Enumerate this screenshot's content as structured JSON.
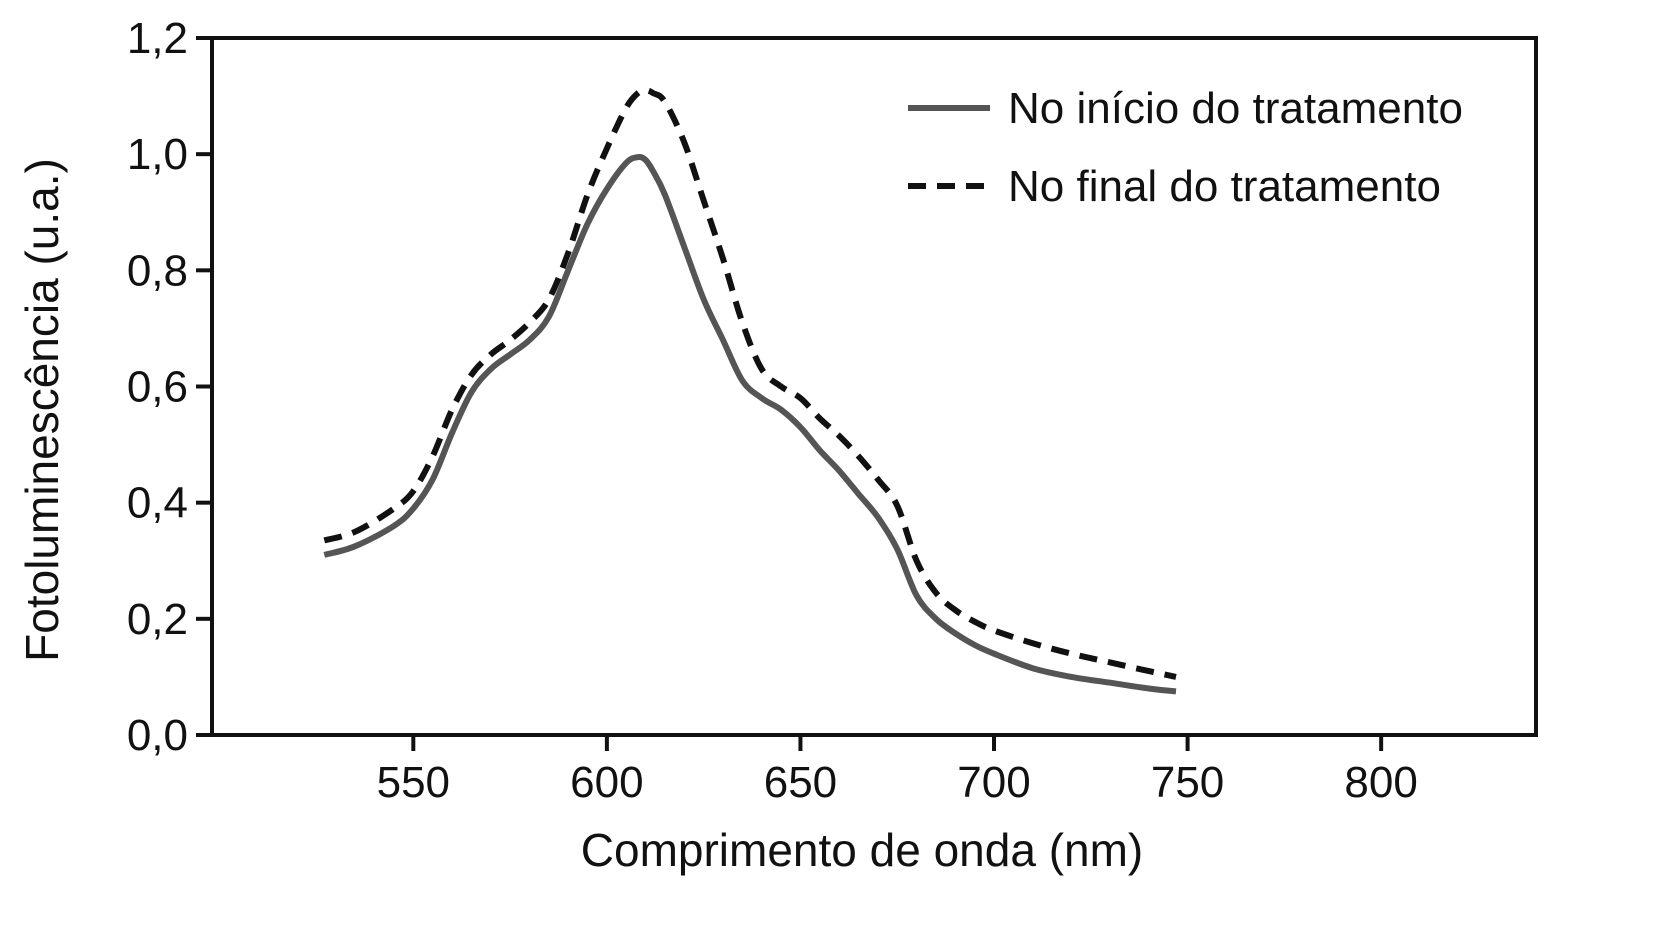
{
  "chart_data": {
    "type": "line",
    "title": "",
    "xlabel": "Comprimento de onda (nm)",
    "ylabel": "Fotoluminescência (u.a.)",
    "xlim": [
      498,
      840
    ],
    "ylim": [
      0,
      1.2
    ],
    "xticks": [
      550,
      600,
      650,
      700,
      750,
      800
    ],
    "xtick_labels": [
      "550",
      "600",
      "650",
      "700",
      "750",
      "800"
    ],
    "yticks": [
      0,
      0.2,
      0.4,
      0.6,
      0.8,
      1.0,
      1.2
    ],
    "ytick_labels": [
      "0,0",
      "0,2",
      "0,4",
      "0,6",
      "0,8",
      "1,0",
      "1,2"
    ],
    "grid": false,
    "legend_position": "top-right",
    "series": [
      {
        "name": "No início do tratamento",
        "style": "solid",
        "color": "#555555",
        "x": [
          527,
          535,
          545,
          550,
          555,
          560,
          565,
          570,
          575,
          580,
          585,
          590,
          595,
          600,
          605,
          608,
          610,
          612,
          615,
          620,
          625,
          630,
          635,
          640,
          645,
          650,
          655,
          660,
          665,
          670,
          675,
          680,
          685,
          690,
          695,
          700,
          710,
          720,
          730,
          740,
          747
        ],
        "y": [
          0.31,
          0.325,
          0.36,
          0.39,
          0.44,
          0.52,
          0.59,
          0.63,
          0.655,
          0.68,
          0.72,
          0.8,
          0.88,
          0.94,
          0.985,
          0.995,
          0.99,
          0.97,
          0.93,
          0.84,
          0.75,
          0.68,
          0.61,
          0.58,
          0.56,
          0.53,
          0.49,
          0.455,
          0.415,
          0.375,
          0.32,
          0.24,
          0.2,
          0.175,
          0.155,
          0.14,
          0.115,
          0.1,
          0.09,
          0.08,
          0.075
        ]
      },
      {
        "name": "No final do tratamento",
        "style": "dashed",
        "color": "#111111",
        "x": [
          527,
          535,
          545,
          550,
          555,
          560,
          565,
          570,
          575,
          580,
          585,
          590,
          595,
          600,
          605,
          608,
          610,
          612,
          615,
          620,
          625,
          630,
          635,
          640,
          645,
          650,
          655,
          660,
          665,
          670,
          675,
          680,
          685,
          690,
          695,
          700,
          710,
          720,
          730,
          740,
          747
        ],
        "y": [
          0.335,
          0.35,
          0.39,
          0.42,
          0.48,
          0.56,
          0.62,
          0.655,
          0.68,
          0.71,
          0.75,
          0.83,
          0.93,
          1.01,
          1.08,
          1.105,
          1.11,
          1.105,
          1.09,
          1.02,
          0.92,
          0.82,
          0.71,
          0.63,
          0.6,
          0.58,
          0.545,
          0.515,
          0.48,
          0.44,
          0.395,
          0.3,
          0.245,
          0.215,
          0.195,
          0.18,
          0.158,
          0.14,
          0.125,
          0.11,
          0.1
        ]
      }
    ]
  }
}
